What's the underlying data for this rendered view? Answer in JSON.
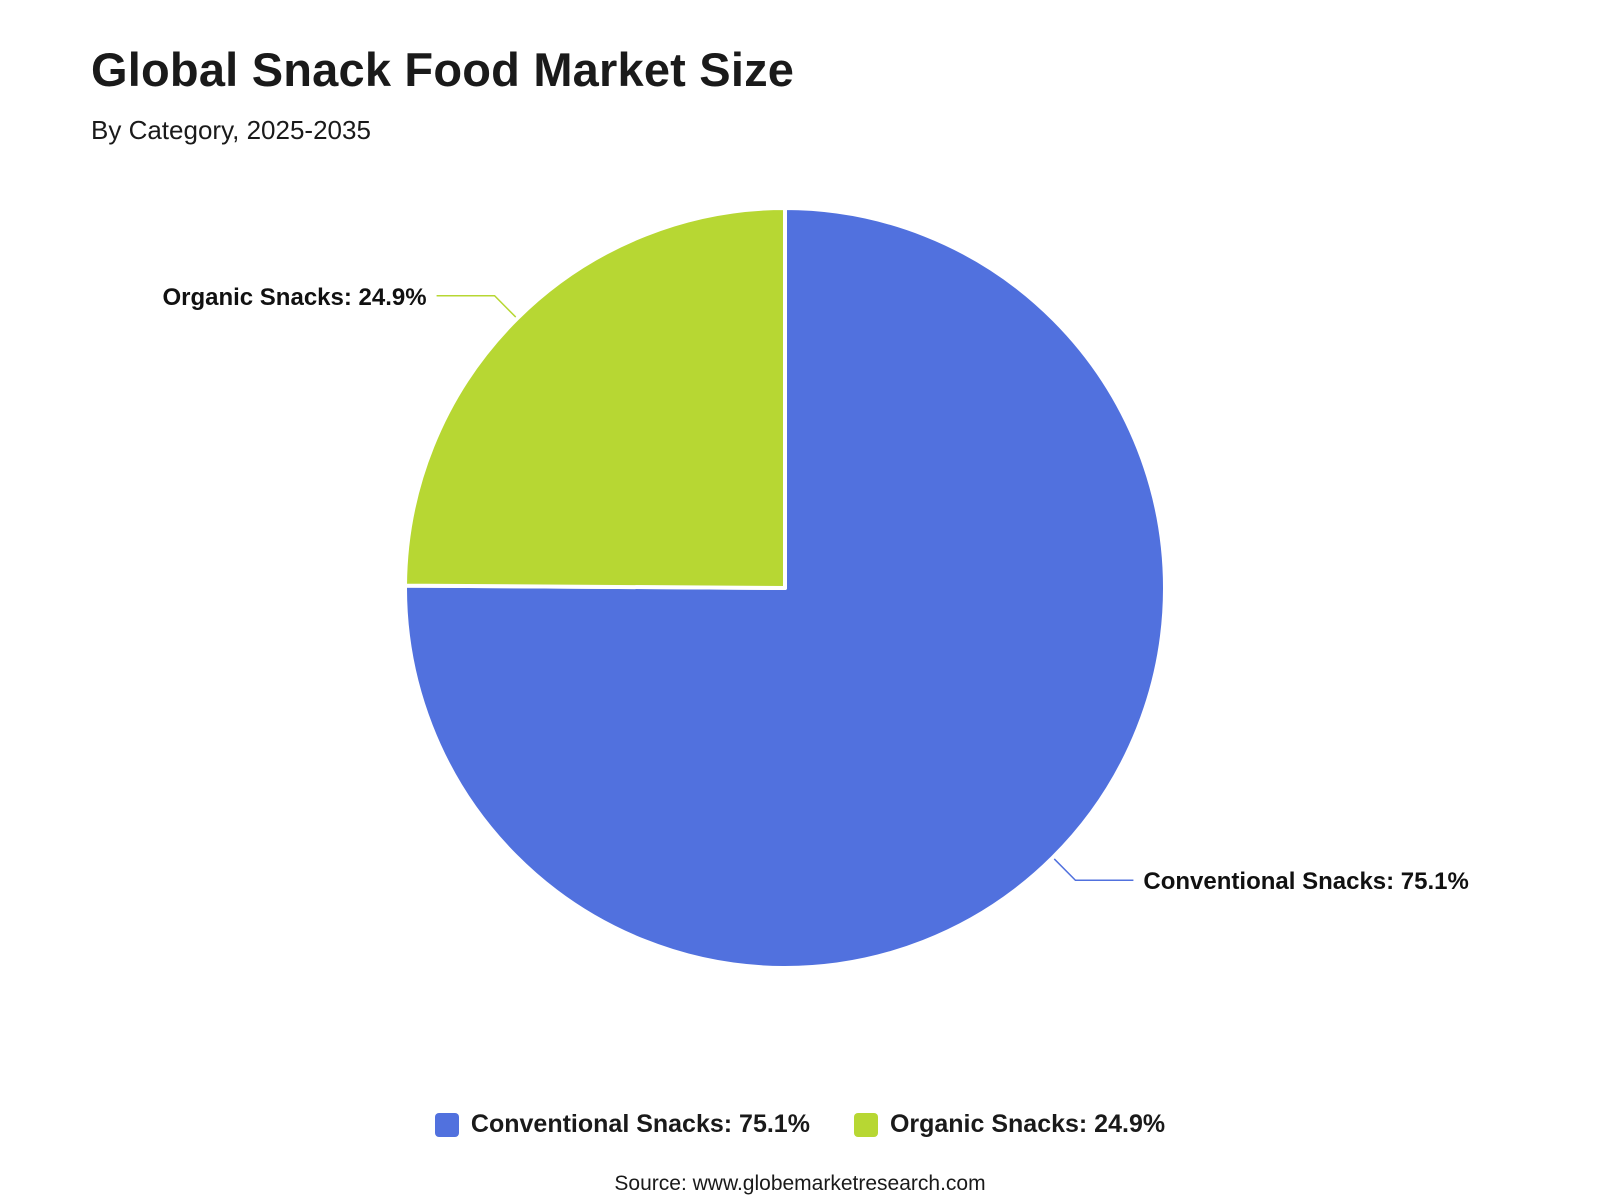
{
  "header": {
    "title": "Global Snack Food Market Size",
    "subtitle": "By Category, 2025-2035"
  },
  "chart_data": {
    "type": "pie",
    "title": "Global Snack Food Market Size",
    "subtitle": "By Category, 2025-2035",
    "categories": [
      "Conventional Snacks",
      "Organic Snacks"
    ],
    "values": [
      75.1,
      24.9
    ],
    "unit": "%",
    "colors": [
      "#5171DE",
      "#B7D733"
    ],
    "labels": [
      "Conventional Snacks: 75.1%",
      "Organic Snacks: 24.9%"
    ],
    "legend_position": "bottom-center"
  },
  "legend": {
    "items": [
      {
        "label": "Conventional Snacks: 75.1%",
        "color": "#5171DE"
      },
      {
        "label": "Organic Snacks: 24.9%",
        "color": "#B7D733"
      }
    ]
  },
  "footer": {
    "source": "Source: www.globemarketresearch.com"
  }
}
